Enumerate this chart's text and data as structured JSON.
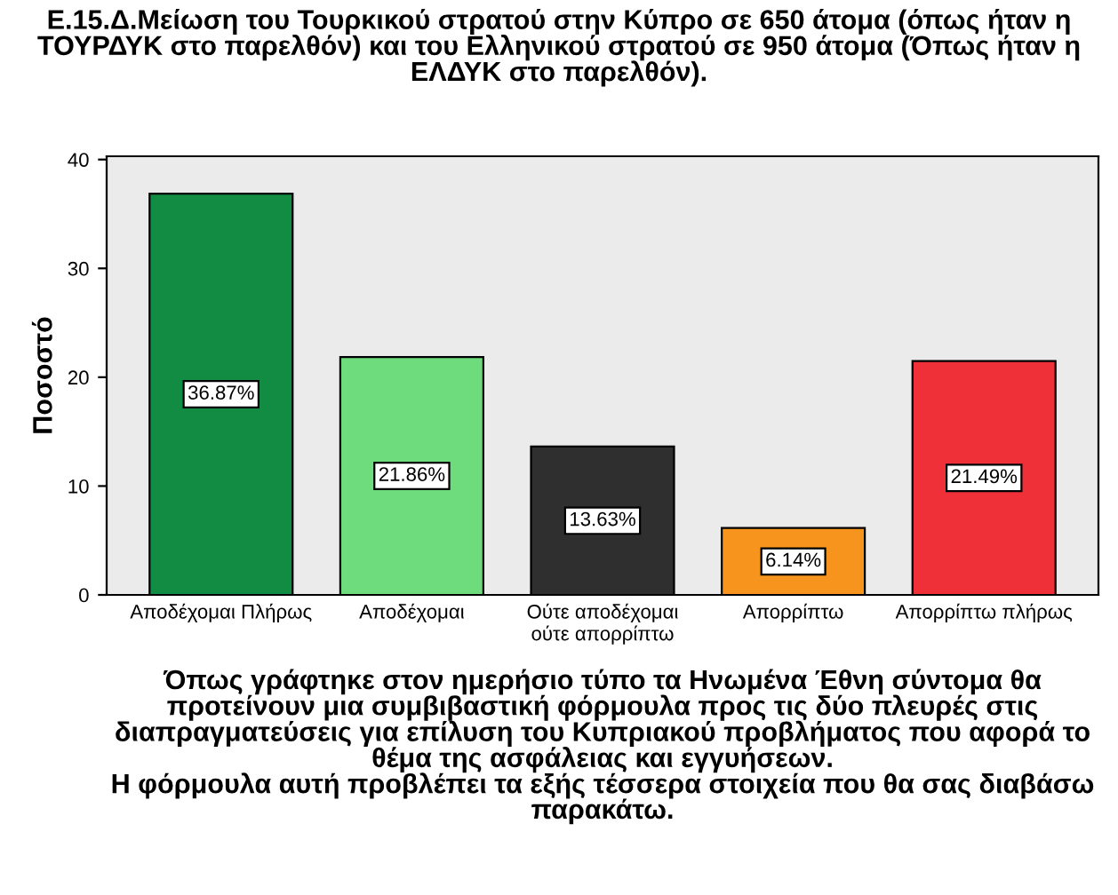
{
  "chart_data": {
    "type": "bar",
    "title": "Ε.15.Δ.Μείωση του Τουρκικού στρατού στην Κύπρο σε 650 άτομα (όπως ήταν η\nΤΟΥΡΔΥΚ στο παρελθόν) και του Ελληνικού στρατού σε 950 άτομα (Όπως ήταν η\nΕΛΔΥΚ στο παρελθόν).",
    "xlabel": "Όπως γράφτηκε στον ημερήσιο τύπο τα Ηνωμένα Έθνη σύντομα θα\nπροτείνουν μια συμβιβαστική φόρμουλα προς τις δύο πλευρές στις\nδιαπραγματεύσεις για επίλυση του Κυπριακού προβλήματος που αφορά το\nθέμα της ασφάλειας και εγγυήσεων.\nΗ φόρμουλα αυτή προβλέπει τα εξής τέσσερα στοιχεία που θα σας διαβάσω\nπαρακάτω.",
    "ylabel": "Ποσοστό",
    "categories": [
      "Αποδέχομαι Πλήρως",
      "Αποδέχομαι",
      "Ούτε αποδέχομαι\nούτε απορρίπτω",
      "Απορρίπτω",
      "Απορρίπτω πλήρως"
    ],
    "values": [
      36.87,
      21.86,
      13.63,
      6.14,
      21.49
    ],
    "value_labels": [
      "36.87%",
      "21.86%",
      "13.63%",
      "6.14%",
      "21.49%"
    ],
    "colors": [
      "#128c42",
      "#6edc7c",
      "#2f2f2f",
      "#f7941d",
      "#f03038"
    ],
    "ylim": [
      0,
      40.3
    ],
    "yticks": [
      0,
      10,
      20,
      30,
      40
    ],
    "grid": false
  }
}
